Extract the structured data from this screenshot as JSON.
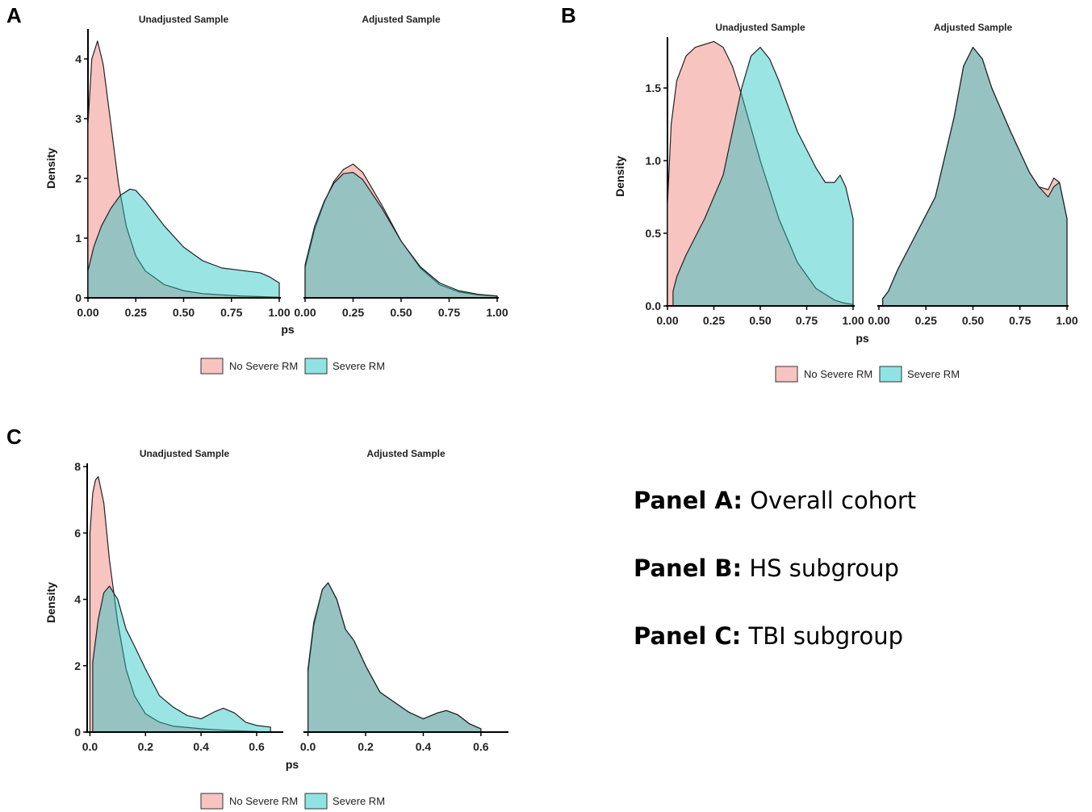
{
  "colors": {
    "no_severe": "#F8C4C0",
    "severe": "#8FE3E3",
    "overlap": "#7AABA6",
    "outline": "#222222"
  },
  "legend": {
    "no_severe_label": "No Severe RM",
    "severe_label": "Severe RM"
  },
  "notes": [
    {
      "label": "Panel A:",
      "text": "Overall cohort"
    },
    {
      "label": "Panel B:",
      "text": "HS subgroup"
    },
    {
      "label": "Panel C:",
      "text": "TBI subgroup"
    }
  ],
  "chart_data": [
    {
      "panel": "A",
      "type": "area",
      "ylabel": "Density",
      "xlabel": "ps",
      "ylim": [
        0,
        4.5
      ],
      "yticks": [
        0,
        1,
        2,
        3,
        4
      ],
      "ytick_labels": [
        "0",
        "1",
        "2",
        "3",
        "4"
      ],
      "xlim": [
        0,
        1
      ],
      "xticks": [
        0,
        0.25,
        0.5,
        0.75,
        1
      ],
      "xtick_labels": [
        "0.00",
        "0.25",
        "0.50",
        "0.75",
        "1.00"
      ],
      "facets": [
        {
          "title": "Unadjusted Sample",
          "series": [
            {
              "name": "No Severe RM",
              "x": [
                0,
                0.02,
                0.05,
                0.08,
                0.12,
                0.16,
                0.2,
                0.25,
                0.3,
                0.4,
                0.5,
                0.6,
                0.7,
                0.8,
                0.9,
                1.0
              ],
              "y": [
                2.9,
                4.0,
                4.3,
                3.9,
                2.9,
                1.9,
                1.2,
                0.7,
                0.45,
                0.22,
                0.12,
                0.07,
                0.05,
                0.03,
                0.02,
                0.01
              ]
            },
            {
              "name": "Severe RM",
              "x": [
                0,
                0.03,
                0.07,
                0.12,
                0.17,
                0.22,
                0.25,
                0.3,
                0.4,
                0.5,
                0.6,
                0.7,
                0.8,
                0.9,
                0.95,
                1.0
              ],
              "y": [
                0.45,
                0.85,
                1.2,
                1.5,
                1.72,
                1.82,
                1.8,
                1.62,
                1.2,
                0.85,
                0.62,
                0.5,
                0.46,
                0.42,
                0.35,
                0.25
              ]
            }
          ]
        },
        {
          "title": "Adjusted Sample",
          "series": [
            {
              "name": "No Severe RM",
              "x": [
                0,
                0.05,
                0.1,
                0.15,
                0.2,
                0.25,
                0.3,
                0.4,
                0.5,
                0.6,
                0.7,
                0.8,
                0.9,
                1.0
              ],
              "y": [
                0.5,
                1.15,
                1.6,
                1.95,
                2.15,
                2.24,
                2.1,
                1.55,
                0.95,
                0.5,
                0.22,
                0.1,
                0.05,
                0.03
              ]
            },
            {
              "name": "Severe RM",
              "x": [
                0,
                0.05,
                0.1,
                0.15,
                0.2,
                0.25,
                0.3,
                0.4,
                0.5,
                0.6,
                0.7,
                0.8,
                0.9,
                1.0
              ],
              "y": [
                0.55,
                1.2,
                1.62,
                1.92,
                2.08,
                2.1,
                1.98,
                1.5,
                0.95,
                0.52,
                0.25,
                0.12,
                0.06,
                0.03
              ]
            }
          ]
        }
      ]
    },
    {
      "panel": "B",
      "type": "area",
      "ylabel": "Density",
      "xlabel": "ps",
      "ylim": [
        0,
        1.85
      ],
      "yticks": [
        0,
        0.5,
        1,
        1.5
      ],
      "ytick_labels": [
        "0.0",
        "0.5",
        "1.0",
        "1.5"
      ],
      "xlim": [
        0,
        1
      ],
      "xticks": [
        0,
        0.25,
        0.5,
        0.75,
        1
      ],
      "xtick_labels": [
        "0.00",
        "0.25",
        "0.50",
        "0.75",
        "1.00"
      ],
      "facets": [
        {
          "title": "Unadjusted Sample",
          "series": [
            {
              "name": "No Severe RM",
              "x": [
                0,
                0.02,
                0.05,
                0.1,
                0.15,
                0.2,
                0.25,
                0.3,
                0.35,
                0.4,
                0.5,
                0.6,
                0.7,
                0.8,
                0.9,
                0.95,
                1.0
              ],
              "y": [
                0.7,
                1.25,
                1.55,
                1.72,
                1.78,
                1.8,
                1.82,
                1.78,
                1.65,
                1.45,
                1.0,
                0.6,
                0.3,
                0.12,
                0.04,
                0.02,
                0.01
              ]
            },
            {
              "name": "Severe RM",
              "x": [
                0.03,
                0.05,
                0.1,
                0.2,
                0.3,
                0.4,
                0.45,
                0.5,
                0.55,
                0.6,
                0.7,
                0.8,
                0.85,
                0.9,
                0.93,
                0.96,
                1.0
              ],
              "y": [
                0.1,
                0.2,
                0.35,
                0.6,
                0.9,
                1.5,
                1.72,
                1.78,
                1.7,
                1.55,
                1.2,
                0.95,
                0.85,
                0.85,
                0.9,
                0.82,
                0.6
              ]
            }
          ]
        },
        {
          "title": "Adjusted Sample",
          "series": [
            {
              "name": "No Severe RM",
              "x": [
                0.02,
                0.05,
                0.1,
                0.2,
                0.3,
                0.4,
                0.45,
                0.5,
                0.55,
                0.6,
                0.7,
                0.8,
                0.85,
                0.9,
                0.93,
                0.96,
                1.0
              ],
              "y": [
                0.05,
                0.1,
                0.25,
                0.5,
                0.75,
                1.3,
                1.65,
                1.78,
                1.7,
                1.5,
                1.2,
                0.92,
                0.82,
                0.8,
                0.88,
                0.85,
                0.6
              ]
            },
            {
              "name": "Severe RM",
              "x": [
                0.02,
                0.05,
                0.1,
                0.2,
                0.3,
                0.4,
                0.45,
                0.5,
                0.55,
                0.6,
                0.7,
                0.8,
                0.85,
                0.9,
                0.93,
                0.96,
                1.0
              ],
              "y": [
                0.05,
                0.1,
                0.25,
                0.5,
                0.75,
                1.3,
                1.65,
                1.78,
                1.7,
                1.5,
                1.2,
                0.92,
                0.82,
                0.75,
                0.82,
                0.85,
                0.6
              ]
            }
          ]
        }
      ]
    },
    {
      "panel": "C",
      "type": "area",
      "ylabel": "Density",
      "xlabel": "ps",
      "ylim": [
        0,
        8.1
      ],
      "yticks": [
        0,
        2,
        4,
        6,
        8
      ],
      "ytick_labels": [
        "0",
        "2",
        "4",
        "6",
        "8"
      ],
      "xlim": [
        -0.01,
        0.69
      ],
      "xticks": [
        0,
        0.2,
        0.4,
        0.6
      ],
      "xtick_labels": [
        "0.0",
        "0.2",
        "0.4",
        "0.6"
      ],
      "facets": [
        {
          "title": "Unadjusted Sample",
          "series": [
            {
              "name": "No Severe RM",
              "x": [
                0,
                0.01,
                0.02,
                0.03,
                0.05,
                0.07,
                0.1,
                0.13,
                0.16,
                0.2,
                0.25,
                0.3,
                0.4,
                0.5,
                0.6
              ],
              "y": [
                6.0,
                7.2,
                7.6,
                7.7,
                6.9,
                5.2,
                3.3,
                1.9,
                1.1,
                0.55,
                0.3,
                0.18,
                0.1,
                0.05,
                0.02
              ]
            },
            {
              "name": "Severe RM",
              "x": [
                0.01,
                0.03,
                0.05,
                0.07,
                0.1,
                0.13,
                0.16,
                0.2,
                0.25,
                0.3,
                0.35,
                0.4,
                0.45,
                0.48,
                0.52,
                0.56,
                0.6,
                0.65
              ],
              "y": [
                2.1,
                3.4,
                4.2,
                4.4,
                4.0,
                3.1,
                2.6,
                1.9,
                1.1,
                0.75,
                0.5,
                0.4,
                0.62,
                0.72,
                0.58,
                0.3,
                0.2,
                0.15
              ]
            }
          ]
        },
        {
          "title": "Adjusted Sample",
          "series": [
            {
              "name": "No Severe RM",
              "x": [
                0.0,
                0.02,
                0.05,
                0.07,
                0.1,
                0.13,
                0.16,
                0.2,
                0.25,
                0.3,
                0.35,
                0.4,
                0.45,
                0.48,
                0.52,
                0.56,
                0.6
              ],
              "y": [
                1.8,
                3.2,
                4.3,
                4.5,
                4.0,
                3.1,
                2.75,
                2.0,
                1.2,
                0.9,
                0.6,
                0.4,
                0.58,
                0.65,
                0.52,
                0.25,
                0.1
              ]
            },
            {
              "name": "Severe RM",
              "x": [
                0.0,
                0.02,
                0.05,
                0.07,
                0.1,
                0.13,
                0.16,
                0.2,
                0.25,
                0.3,
                0.35,
                0.4,
                0.45,
                0.48,
                0.52,
                0.56,
                0.6
              ],
              "y": [
                1.9,
                3.3,
                4.3,
                4.5,
                4.0,
                3.1,
                2.75,
                2.0,
                1.2,
                0.9,
                0.6,
                0.4,
                0.58,
                0.65,
                0.52,
                0.25,
                0.1
              ]
            }
          ]
        }
      ]
    }
  ]
}
